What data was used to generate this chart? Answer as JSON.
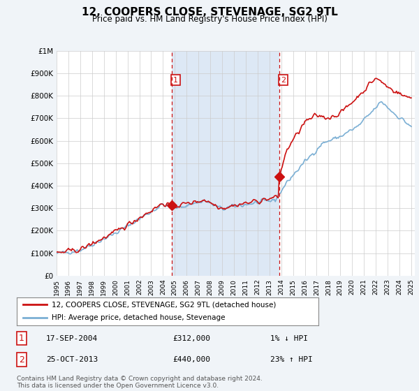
{
  "title": "12, COOPERS CLOSE, STEVENAGE, SG2 9TL",
  "subtitle": "Price paid vs. HM Land Registry's House Price Index (HPI)",
  "background_color": "#f0f4f8",
  "plot_bg_color": "#ffffff",
  "shade_color": "#dde8f5",
  "ylim": [
    0,
    1000000
  ],
  "yticks": [
    0,
    100000,
    200000,
    300000,
    400000,
    500000,
    600000,
    700000,
    800000,
    900000,
    1000000
  ],
  "ytick_labels": [
    "£0",
    "£100K",
    "£200K",
    "£300K",
    "£400K",
    "£500K",
    "£600K",
    "£700K",
    "£800K",
    "£900K",
    "£1M"
  ],
  "sale1_date": 2004.72,
  "sale1_price": 312000,
  "sale2_date": 2013.82,
  "sale2_price": 440000,
  "sale1_label": "17-SEP-2004",
  "sale1_amount": "£312,000",
  "sale1_hpi": "1% ↓ HPI",
  "sale2_label": "25-OCT-2013",
  "sale2_amount": "£440,000",
  "sale2_hpi": "23% ↑ HPI",
  "legend_line1": "12, COOPERS CLOSE, STEVENAGE, SG2 9TL (detached house)",
  "legend_line2": "HPI: Average price, detached house, Stevenage",
  "footer": "Contains HM Land Registry data © Crown copyright and database right 2024.\nThis data is licensed under the Open Government Licence v3.0.",
  "hpi_color": "#7bafd4",
  "price_color": "#cc1111",
  "marker_color": "#cc1111",
  "vline_color": "#cc1111"
}
